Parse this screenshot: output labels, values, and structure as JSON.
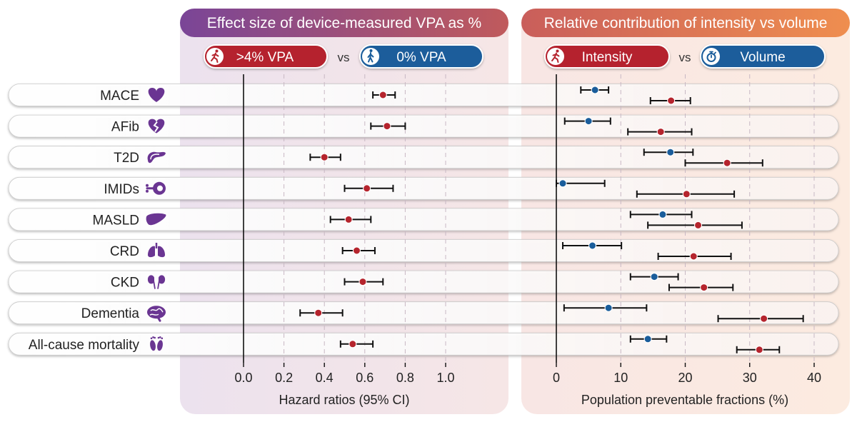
{
  "left_panel": {
    "title": "Effect size of device-measured VPA as %",
    "legend_high": ">4% VPA",
    "legend_vs": "vs",
    "legend_low": "0% VPA",
    "xlabel": "Hazard ratios (95% CI)"
  },
  "right_panel": {
    "title": "Relative contribution of intensity vs volume",
    "legend_intensity": "Intensity",
    "legend_vs": "vs",
    "legend_volume": "Volume",
    "xlabel": "Population preventable fractions (%)"
  },
  "colors": {
    "red": "#b5242d",
    "blue": "#1a5d9b",
    "purple": "#6a3592",
    "left_panel_bg": "#f1e4ec",
    "right_panel_bg": "#fbe8de",
    "left_title_from": "#7a4597",
    "left_title_to": "#c05a5c",
    "right_title_from": "#c95e5b",
    "right_title_to": "#ef8e4f"
  },
  "outcomes": [
    {
      "label": "MACE",
      "icon": "heart-icon"
    },
    {
      "label": "AFib",
      "icon": "broken-heart-icon"
    },
    {
      "label": "T2D",
      "icon": "pancreas-icon"
    },
    {
      "label": "IMIDs",
      "icon": "immune-cell-icon"
    },
    {
      "label": "MASLD",
      "icon": "liver-icon"
    },
    {
      "label": "CRD",
      "icon": "lungs-icon"
    },
    {
      "label": "CKD",
      "icon": "kidneys-icon"
    },
    {
      "label": "Dementia",
      "icon": "brain-icon"
    },
    {
      "label": "All-cause mortality",
      "icon": "footprints-icon"
    }
  ],
  "chart_data": [
    {
      "type": "forest",
      "title": "Effect size of device-measured VPA as %",
      "xlabel": "Hazard ratios (95% CI)",
      "xlim": [
        0,
        1.0
      ],
      "ticks": [
        "0.0",
        "0.2",
        "0.4",
        "0.6",
        "0.8",
        "1.0"
      ],
      "reference_line": 0,
      "grid": "dashed vertical",
      "series": [
        {
          "name": ">4% VPA",
          "color": "red",
          "points": [
            {
              "outcome": "MACE",
              "value": 0.69,
              "low": 0.64,
              "high": 0.75
            },
            {
              "outcome": "AFib",
              "value": 0.71,
              "low": 0.63,
              "high": 0.8
            },
            {
              "outcome": "T2D",
              "value": 0.4,
              "low": 0.33,
              "high": 0.48
            },
            {
              "outcome": "IMIDs",
              "value": 0.61,
              "low": 0.5,
              "high": 0.74
            },
            {
              "outcome": "MASLD",
              "value": 0.52,
              "low": 0.43,
              "high": 0.63
            },
            {
              "outcome": "CRD",
              "value": 0.56,
              "low": 0.49,
              "high": 0.65
            },
            {
              "outcome": "CKD",
              "value": 0.59,
              "low": 0.5,
              "high": 0.69
            },
            {
              "outcome": "Dementia",
              "value": 0.37,
              "low": 0.28,
              "high": 0.49
            },
            {
              "outcome": "All-cause mortality",
              "value": 0.54,
              "low": 0.48,
              "high": 0.64
            }
          ]
        }
      ]
    },
    {
      "type": "forest",
      "title": "Relative contribution of intensity vs volume",
      "xlabel": "Population preventable fractions (%)",
      "xlim": [
        0,
        40
      ],
      "ticks": [
        "0",
        "10",
        "20",
        "30",
        "40"
      ],
      "reference_line": 0,
      "grid": "dashed vertical",
      "series": [
        {
          "name": "Volume",
          "color": "blue",
          "points": [
            {
              "outcome": "MACE",
              "value": 6.0,
              "low": 3.8,
              "high": 8.1
            },
            {
              "outcome": "AFib",
              "value": 5.0,
              "low": 1.3,
              "high": 8.4
            },
            {
              "outcome": "T2D",
              "value": 17.7,
              "low": 13.6,
              "high": 21.2
            },
            {
              "outcome": "IMIDs",
              "value": 1.0,
              "low": 0.0,
              "high": 7.5
            },
            {
              "outcome": "MASLD",
              "value": 16.5,
              "low": 11.5,
              "high": 21.0
            },
            {
              "outcome": "CRD",
              "value": 5.6,
              "low": 1.0,
              "high": 10.1
            },
            {
              "outcome": "CKD",
              "value": 15.2,
              "low": 11.5,
              "high": 18.9
            },
            {
              "outcome": "Dementia",
              "value": 8.1,
              "low": 1.2,
              "high": 14.0
            },
            {
              "outcome": "All-cause mortality",
              "value": 14.2,
              "low": 11.5,
              "high": 17.1
            }
          ]
        },
        {
          "name": "Intensity",
          "color": "red",
          "points": [
            {
              "outcome": "MACE",
              "value": 17.8,
              "low": 14.6,
              "high": 20.8
            },
            {
              "outcome": "AFib",
              "value": 16.2,
              "low": 11.1,
              "high": 21.0
            },
            {
              "outcome": "T2D",
              "value": 26.5,
              "low": 20.0,
              "high": 32.0
            },
            {
              "outcome": "IMIDs",
              "value": 20.2,
              "low": 12.5,
              "high": 27.6
            },
            {
              "outcome": "MASLD",
              "value": 22.0,
              "low": 14.2,
              "high": 28.8
            },
            {
              "outcome": "CRD",
              "value": 21.3,
              "low": 15.8,
              "high": 27.1
            },
            {
              "outcome": "CKD",
              "value": 22.9,
              "low": 17.5,
              "high": 27.4
            },
            {
              "outcome": "Dementia",
              "value": 32.2,
              "low": 25.1,
              "high": 38.3
            },
            {
              "outcome": "All-cause mortality",
              "value": 31.5,
              "low": 28.0,
              "high": 34.6
            }
          ]
        }
      ]
    }
  ]
}
